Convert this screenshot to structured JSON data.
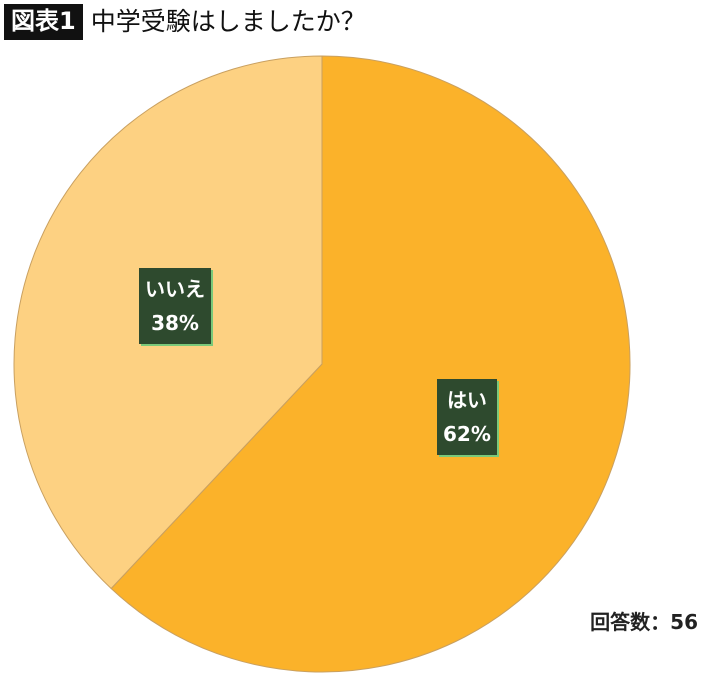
{
  "header": {
    "badge": "図表1",
    "title": "中学受験はしましたか？"
  },
  "chart_data": {
    "type": "pie",
    "slices": [
      {
        "label": "はい",
        "percent_label": "62%",
        "value": 62,
        "color": "#fbb22a"
      },
      {
        "label": "いいえ",
        "percent_label": "38%",
        "value": 38,
        "color": "#fdd182"
      }
    ],
    "title": "中学受験はしましたか？",
    "legend": "none",
    "label_box_color": "#2e4a2e"
  },
  "footnote": "回答数：56"
}
